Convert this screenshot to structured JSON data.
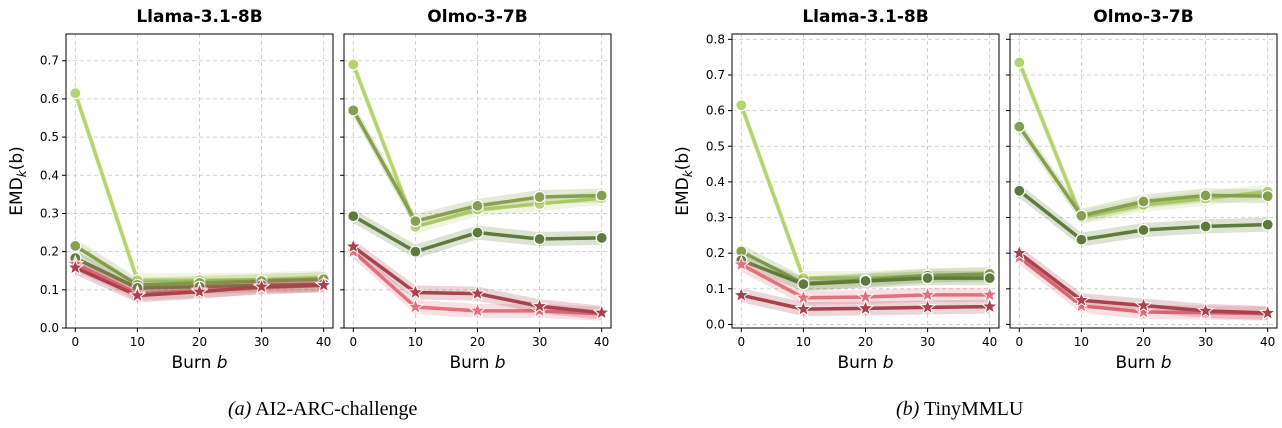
{
  "captions": [
    {
      "tag": "(a)",
      "text": "AI2-ARC-challenge"
    },
    {
      "tag": "(b)",
      "text": "TinyMMLU"
    }
  ],
  "y_axis_main": "EMD",
  "y_axis_sub": "k",
  "y_axis_tail": "(b)",
  "x_axis_main": "Burn",
  "x_axis_var": "b",
  "colors": {
    "light_green": "#b5d46d",
    "mid_green": "#86a04e",
    "dark_green": "#5f7a3a",
    "light_red": "#e4707d",
    "mid_red": "#d05a66",
    "dark_red": "#a8424c"
  },
  "chart_data": [
    {
      "type": "line",
      "title": "Llama-3.1-8B",
      "x": [
        0,
        10,
        20,
        30,
        40
      ],
      "xticks": [
        0,
        10,
        20,
        30,
        40
      ],
      "ylim": [
        0,
        0.77
      ],
      "yticks": [
        0.0,
        0.1,
        0.2,
        0.3,
        0.4,
        0.5,
        0.6,
        0.7
      ],
      "grid": true,
      "series": [
        {
          "color": "light_green",
          "marker": "circle",
          "values": [
            0.615,
            0.125,
            0.125,
            0.127,
            0.133
          ]
        },
        {
          "color": "mid_green",
          "marker": "circle",
          "values": [
            0.215,
            0.113,
            0.118,
            0.123,
            0.128
          ]
        },
        {
          "color": "dark_green",
          "marker": "circle",
          "values": [
            0.183,
            0.105,
            0.108,
            0.112,
            0.115
          ]
        },
        {
          "color": "light_red",
          "marker": "star",
          "values": [
            0.168,
            0.09,
            0.098,
            0.105,
            0.112
          ]
        },
        {
          "color": "dark_red",
          "marker": "star",
          "values": [
            0.158,
            0.085,
            0.095,
            0.108,
            0.112
          ]
        }
      ]
    },
    {
      "type": "line",
      "title": "Olmo-3-7B",
      "x": [
        0,
        10,
        20,
        30,
        40
      ],
      "xticks": [
        0,
        10,
        20,
        30,
        40
      ],
      "ylim": [
        0,
        0.77
      ],
      "yticks": [
        0.0,
        0.1,
        0.2,
        0.3,
        0.4,
        0.5,
        0.6,
        0.7
      ],
      "grid": true,
      "series": [
        {
          "color": "light_green",
          "marker": "circle",
          "values": [
            0.69,
            0.265,
            0.31,
            0.325,
            0.34
          ]
        },
        {
          "color": "mid_green",
          "marker": "circle",
          "values": [
            0.57,
            0.28,
            0.32,
            0.343,
            0.347
          ]
        },
        {
          "color": "dark_green",
          "marker": "circle",
          "values": [
            0.293,
            0.2,
            0.25,
            0.233,
            0.236
          ]
        },
        {
          "color": "light_red",
          "marker": "star",
          "values": [
            0.2,
            0.055,
            0.045,
            0.045,
            0.037
          ]
        },
        {
          "color": "dark_red",
          "marker": "star",
          "values": [
            0.213,
            0.093,
            0.09,
            0.057,
            0.04
          ]
        }
      ]
    },
    {
      "type": "line",
      "title": "Llama-3.1-8B",
      "x": [
        0,
        10,
        20,
        30,
        40
      ],
      "xticks": [
        0,
        10,
        20,
        30,
        40
      ],
      "ylim": [
        -0.01,
        0.815
      ],
      "yticks": [
        0.0,
        0.1,
        0.2,
        0.3,
        0.4,
        0.5,
        0.6,
        0.7,
        0.8
      ],
      "grid": true,
      "series": [
        {
          "color": "light_green",
          "marker": "circle",
          "values": [
            0.615,
            0.13,
            0.13,
            0.137,
            0.138
          ]
        },
        {
          "color": "mid_green",
          "marker": "circle",
          "values": [
            0.205,
            0.115,
            0.125,
            0.137,
            0.142
          ]
        },
        {
          "color": "dark_green",
          "marker": "circle",
          "values": [
            0.18,
            0.113,
            0.122,
            0.13,
            0.13
          ]
        },
        {
          "color": "light_red",
          "marker": "star",
          "values": [
            0.168,
            0.075,
            0.077,
            0.083,
            0.083
          ]
        },
        {
          "color": "dark_red",
          "marker": "star",
          "values": [
            0.082,
            0.043,
            0.045,
            0.048,
            0.05
          ]
        }
      ]
    },
    {
      "type": "line",
      "title": "Olmo-3-7B",
      "x": [
        0,
        10,
        20,
        30,
        40
      ],
      "xticks": [
        0,
        10,
        20,
        30,
        40
      ],
      "ylim": [
        -0.01,
        0.815
      ],
      "yticks": [
        0.0,
        0.1,
        0.2,
        0.3,
        0.4,
        0.5,
        0.6,
        0.7,
        0.8
      ],
      "grid": true,
      "series": [
        {
          "color": "light_green",
          "marker": "circle",
          "values": [
            0.735,
            0.3,
            0.335,
            0.353,
            0.373
          ]
        },
        {
          "color": "mid_green",
          "marker": "circle",
          "values": [
            0.555,
            0.305,
            0.345,
            0.362,
            0.36
          ]
        },
        {
          "color": "dark_green",
          "marker": "circle",
          "values": [
            0.375,
            0.238,
            0.265,
            0.275,
            0.28
          ]
        },
        {
          "color": "light_red",
          "marker": "star",
          "values": [
            0.188,
            0.052,
            0.035,
            0.033,
            0.03
          ]
        },
        {
          "color": "dark_red",
          "marker": "star",
          "values": [
            0.2,
            0.068,
            0.053,
            0.038,
            0.032
          ]
        }
      ]
    }
  ]
}
